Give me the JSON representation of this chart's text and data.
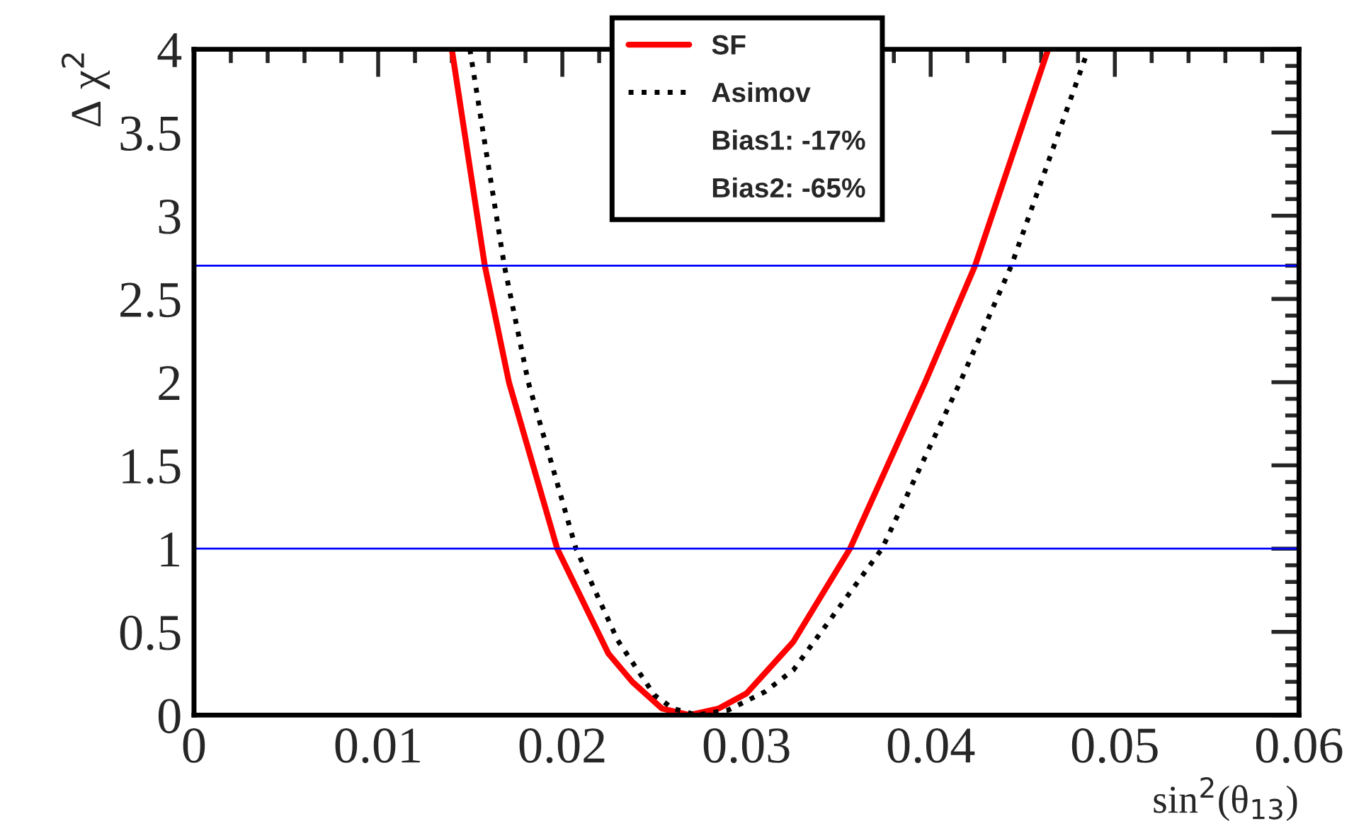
{
  "chart_data": {
    "type": "line",
    "xlabel": "sin$^{2}$(θ$_{13}$)",
    "ylabel": "Δ χ$^{2}$",
    "xlim": [
      0,
      0.06
    ],
    "xticks": [
      0,
      0.01,
      0.02,
      0.03,
      0.04,
      0.05,
      0.06
    ],
    "ylim": [
      0,
      4
    ],
    "yticks": [
      0,
      0.5,
      1,
      1.5,
      2,
      2.5,
      3,
      3.5,
      4
    ],
    "grid": false,
    "legend": "top",
    "series": [
      {
        "name": "SF",
        "color": "#ff0000",
        "line_style": "solid",
        "x": [
          0.014,
          0.01579,
          0.0171,
          0.01972,
          0.0225,
          0.0238,
          0.0254,
          0.0269,
          0.0285,
          0.03,
          0.03254,
          0.03562,
          0.0397,
          0.04241,
          0.04638
        ],
        "values": [
          4,
          2.7,
          2,
          1,
          0.37,
          0.2,
          0.04,
          0,
          0.04,
          0.13,
          0.44,
          1,
          2,
          2.7,
          4
        ]
      },
      {
        "name": "Asimov",
        "color": "#000000",
        "line_style": "dotted",
        "x": [
          0.01498,
          0.01685,
          0.01815,
          0.02074,
          0.023,
          0.025,
          0.026,
          0.0273,
          0.029,
          0.031,
          0.03254,
          0.03736,
          0.0416,
          0.04438,
          0.04856
        ],
        "values": [
          4,
          2.7,
          2,
          1,
          0.45,
          0.12,
          0.04,
          0,
          0.03,
          0.14,
          0.27,
          1,
          2,
          2.7,
          4
        ]
      }
    ],
    "ref_lines": [
      {
        "axis": "y",
        "value": 1,
        "color": "#0000ff"
      },
      {
        "axis": "y",
        "value": 2.7,
        "color": "#0000ff"
      }
    ],
    "annotations": [
      "Bias1: -17%",
      "Bias2: -65%"
    ]
  }
}
